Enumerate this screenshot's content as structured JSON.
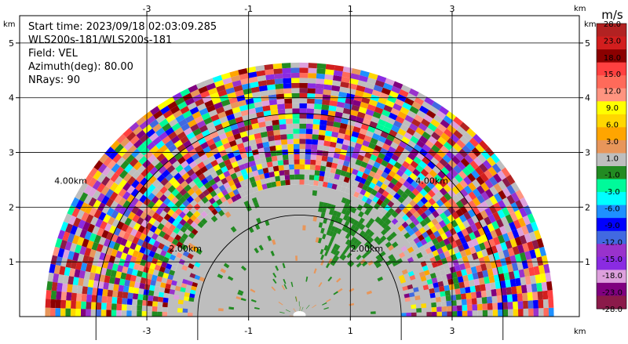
{
  "chart_data": {
    "type": "heatmap",
    "subtype": "ppi-sector",
    "field": "VEL",
    "info_lines": [
      "Start time: 2023/09/18 02:03:09.285",
      "WLS200s-181/WLS200s-181",
      "Field: VEL",
      "Azimuth(deg): 80.00",
      "NRays: 90"
    ],
    "x_axis": {
      "ticks": [
        -3,
        -1,
        1,
        3
      ],
      "unit": "km",
      "range": [
        -5.5,
        5.5
      ]
    },
    "y_axis": {
      "ticks": [
        1,
        2,
        3,
        4,
        5
      ],
      "unit": "km",
      "range": [
        0,
        5.5
      ]
    },
    "grid": true,
    "range_rings": [
      {
        "radius_km": 2,
        "label": "2.00km"
      },
      {
        "radius_km": 4,
        "label": "4.00km"
      }
    ],
    "max_range_km": 5.0,
    "azimuth_sector_deg": [
      -90,
      90
    ],
    "colorbar": {
      "unit": "m/s",
      "labels": [
        "28.0",
        "23.0",
        "18.0",
        "15.0",
        "12.0",
        "9.0",
        "6.0",
        "3.0",
        "1.0",
        "-1.0",
        "-3.0",
        "-6.0",
        "-9.0",
        "-12.0",
        "-15.0",
        "-18.0",
        "-23.0",
        "-28.0"
      ],
      "colors": [
        "#b22222",
        "#d21e1e",
        "#8b0000",
        "#ff4040",
        "#ff6a5a",
        "#ff9480",
        "#ffff00",
        "#ffd700",
        "#ffa500",
        "#e8965a",
        "#bebebe",
        "#228b22",
        "#00fa9a",
        "#00ffff",
        "#1e90ff",
        "#0000ff",
        "#4169e1",
        "#9932cc",
        "#8a2be2",
        "#dda0dd",
        "#800080",
        "#8b1a4a"
      ]
    },
    "field_description": {
      "near_core": "mostly -1.0 to 1.0 m/s (gray)",
      "green_patches": "-3.0 m/s",
      "outer_band": "noisy mixed values from -28.0 to 28.0 m/s"
    }
  }
}
